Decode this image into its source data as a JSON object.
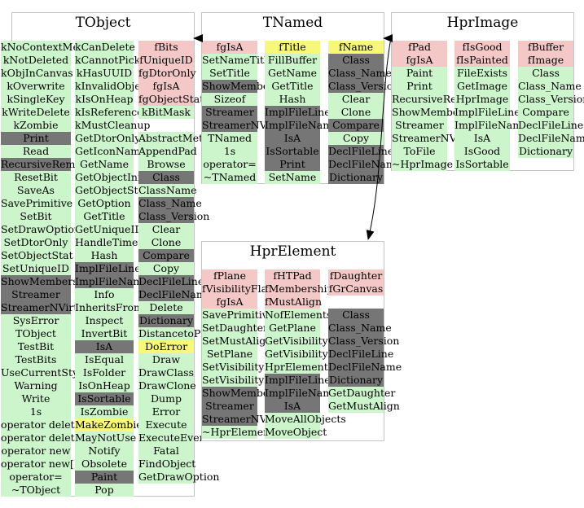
{
  "colors": {
    "pink": "#f5c8c8",
    "green": "#ccf5cc",
    "gray": "#767676",
    "yellow": "#f7f77a"
  },
  "boxes": [
    {
      "id": "tobject",
      "title": "TObject",
      "columns": [
        {
          "items": [
            [
              "kNoContextMenu",
              "green"
            ],
            [
              "kNotDeleted",
              "green"
            ],
            [
              "kObjInCanvas",
              "green"
            ],
            [
              "kOverwrite",
              "green"
            ],
            [
              "kSingleKey",
              "green"
            ],
            [
              "kWriteDelete",
              "green"
            ],
            [
              "kZombie",
              "green"
            ],
            [
              "Print",
              "gray"
            ],
            [
              "Read",
              "green"
            ],
            [
              "RecursiveRemove",
              "gray"
            ],
            [
              "ResetBit",
              "green"
            ],
            [
              "SaveAs",
              "green"
            ],
            [
              "SavePrimitive",
              "green"
            ],
            [
              "SetBit",
              "green"
            ],
            [
              "SetDrawOption",
              "green"
            ],
            [
              "SetDtorOnly",
              "green"
            ],
            [
              "SetObjectStat",
              "green"
            ],
            [
              "SetUniqueID",
              "green"
            ],
            [
              "ShowMembers",
              "gray"
            ],
            [
              "Streamer",
              "gray"
            ],
            [
              "StreamerNVirtual",
              "gray"
            ],
            [
              "SysError",
              "green"
            ],
            [
              "TObject",
              "green"
            ],
            [
              "TestBit",
              "green"
            ],
            [
              "TestBits",
              "green"
            ],
            [
              "UseCurrentStyle",
              "green"
            ],
            [
              "Warning",
              "green"
            ],
            [
              "Write",
              "green"
            ],
            [
              "1s",
              "green"
            ],
            [
              "operator delete",
              "green"
            ],
            [
              "operator delete[]",
              "green"
            ],
            [
              "operator new",
              "green"
            ],
            [
              "operator new[]",
              "green"
            ],
            [
              "operator=",
              "green"
            ],
            [
              "~TObject",
              "green"
            ]
          ]
        },
        {
          "items": [
            [
              "kCanDelete",
              "green"
            ],
            [
              "kCannotPick",
              "green"
            ],
            [
              "kHasUUID",
              "green"
            ],
            [
              "kInvalidObject",
              "green"
            ],
            [
              "kIsOnHeap",
              "green"
            ],
            [
              "kIsReferenced",
              "green"
            ],
            [
              "kMustCleanup",
              "green"
            ],
            [
              "GetDtorOnly",
              "green"
            ],
            [
              "GetIconName",
              "green"
            ],
            [
              "GetName",
              "green"
            ],
            [
              "GetObjectInfo",
              "green"
            ],
            [
              "GetObjectStat",
              "green"
            ],
            [
              "GetOption",
              "green"
            ],
            [
              "GetTitle",
              "green"
            ],
            [
              "GetUniqueID",
              "green"
            ],
            [
              "HandleTimer",
              "green"
            ],
            [
              "Hash",
              "green"
            ],
            [
              "ImplFileLine",
              "gray"
            ],
            [
              "ImplFileName",
              "gray"
            ],
            [
              "Info",
              "green"
            ],
            [
              "InheritsFrom",
              "green"
            ],
            [
              "Inspect",
              "green"
            ],
            [
              "InvertBit",
              "green"
            ],
            [
              "IsA",
              "gray"
            ],
            [
              "IsEqual",
              "green"
            ],
            [
              "IsFolder",
              "green"
            ],
            [
              "IsOnHeap",
              "green"
            ],
            [
              "IsSortable",
              "gray"
            ],
            [
              "IsZombie",
              "green"
            ],
            [
              "MakeZombie",
              "yellow"
            ],
            [
              "MayNotUse",
              "green"
            ],
            [
              "Notify",
              "green"
            ],
            [
              "Obsolete",
              "green"
            ],
            [
              "Paint",
              "gray"
            ],
            [
              "Pop",
              "green"
            ]
          ]
        },
        {
          "items": [
            [
              "fBits",
              "pink"
            ],
            [
              "fUniqueID",
              "pink"
            ],
            [
              "fgDtorOnly",
              "pink"
            ],
            [
              "fgIsA",
              "pink"
            ],
            [
              "fgObjectStat",
              "pink"
            ],
            [
              "kBitMask",
              "green"
            ],
            [
              "_gap_",
              ""
            ],
            [
              "AbstractMethod",
              "green"
            ],
            [
              "AppendPad",
              "green"
            ],
            [
              "Browse",
              "green"
            ],
            [
              "Class",
              "gray"
            ],
            [
              "ClassName",
              "green"
            ],
            [
              "Class_Name",
              "gray"
            ],
            [
              "Class_Version",
              "gray"
            ],
            [
              "Clear",
              "green"
            ],
            [
              "Clone",
              "green"
            ],
            [
              "Compare",
              "gray"
            ],
            [
              "Copy",
              "green"
            ],
            [
              "DeclFileLine",
              "gray"
            ],
            [
              "DeclFileName",
              "gray"
            ],
            [
              "Delete",
              "green"
            ],
            [
              "Dictionary",
              "gray"
            ],
            [
              "DistancetoPrimitive",
              "green"
            ],
            [
              "DoError",
              "yellow"
            ],
            [
              "Draw",
              "green"
            ],
            [
              "DrawClass",
              "green"
            ],
            [
              "DrawClone",
              "green"
            ],
            [
              "Dump",
              "green"
            ],
            [
              "Error",
              "green"
            ],
            [
              "Execute",
              "green"
            ],
            [
              "ExecuteEvent",
              "green"
            ],
            [
              "Fatal",
              "green"
            ],
            [
              "FindObject",
              "green"
            ],
            [
              "GetDrawOption",
              "green"
            ]
          ]
        }
      ]
    },
    {
      "id": "tnamed",
      "title": "TNamed",
      "columns": [
        {
          "items": [
            [
              "fgIsA",
              "pink"
            ],
            [
              "SetNameTitle",
              "green"
            ],
            [
              "SetTitle",
              "green"
            ],
            [
              "ShowMembers",
              "gray"
            ],
            [
              "Sizeof",
              "green"
            ],
            [
              "Streamer",
              "gray"
            ],
            [
              "StreamerNVirtual",
              "gray"
            ],
            [
              "TNamed",
              "green"
            ],
            [
              "1s",
              "green"
            ],
            [
              "operator=",
              "green"
            ],
            [
              "~TNamed",
              "green"
            ]
          ]
        },
        {
          "items": [
            [
              "fTitle",
              "yellow"
            ],
            [
              "FillBuffer",
              "green"
            ],
            [
              "GetName",
              "green"
            ],
            [
              "GetTitle",
              "green"
            ],
            [
              "Hash",
              "green"
            ],
            [
              "ImplFileLine",
              "gray"
            ],
            [
              "ImplFileName",
              "gray"
            ],
            [
              "IsA",
              "gray"
            ],
            [
              "IsSortable",
              "gray"
            ],
            [
              "Print",
              "gray"
            ],
            [
              "SetName",
              "green"
            ]
          ]
        },
        {
          "items": [
            [
              "fName",
              "yellow"
            ],
            [
              "Class",
              "gray"
            ],
            [
              "Class_Name",
              "gray"
            ],
            [
              "Class_Version",
              "gray"
            ],
            [
              "Clear",
              "green"
            ],
            [
              "Clone",
              "green"
            ],
            [
              "Compare",
              "gray"
            ],
            [
              "Copy",
              "green"
            ],
            [
              "DeclFileLine",
              "gray"
            ],
            [
              "DeclFileName",
              "gray"
            ],
            [
              "Dictionary",
              "gray"
            ]
          ]
        }
      ]
    },
    {
      "id": "hprimage",
      "title": "HprImage",
      "columns": [
        {
          "items": [
            [
              "fPad",
              "pink"
            ],
            [
              "fgIsA",
              "pink"
            ],
            [
              "Paint",
              "green"
            ],
            [
              "Print",
              "green"
            ],
            [
              "RecursiveRemove",
              "green"
            ],
            [
              "ShowMembers",
              "green"
            ],
            [
              "Streamer",
              "green"
            ],
            [
              "StreamerNVirtual",
              "green"
            ],
            [
              "ToFile",
              "green"
            ],
            [
              "~HprImage",
              "green"
            ]
          ]
        },
        {
          "items": [
            [
              "fIsGood",
              "pink"
            ],
            [
              "fIsPainted",
              "pink"
            ],
            [
              "FileExists",
              "green"
            ],
            [
              "GetImage",
              "green"
            ],
            [
              "HprImage",
              "green"
            ],
            [
              "ImplFileLine",
              "green"
            ],
            [
              "ImplFileName",
              "green"
            ],
            [
              "IsA",
              "green"
            ],
            [
              "IsGood",
              "green"
            ],
            [
              "IsSortable",
              "green"
            ]
          ]
        },
        {
          "items": [
            [
              "fBuffer",
              "pink"
            ],
            [
              "fImage",
              "pink"
            ],
            [
              "Class",
              "green"
            ],
            [
              "Class_Name",
              "green"
            ],
            [
              "Class_Version",
              "green"
            ],
            [
              "Compare",
              "green"
            ],
            [
              "DeclFileLine",
              "green"
            ],
            [
              "DeclFileName",
              "green"
            ],
            [
              "Dictionary",
              "green"
            ]
          ]
        }
      ]
    },
    {
      "id": "hprelement",
      "title": "HprElement",
      "columns": [
        {
          "items": [
            [
              "fPlane",
              "pink"
            ],
            [
              "fVisibilityFlag",
              "pink"
            ],
            [
              "fgIsA",
              "pink"
            ],
            [
              "SavePrimitive",
              "green"
            ],
            [
              "SetDaughter",
              "green"
            ],
            [
              "SetMustAlign",
              "green"
            ],
            [
              "SetPlane",
              "green"
            ],
            [
              "SetVisibility",
              "green"
            ],
            [
              "SetVisibilityFlag",
              "green"
            ],
            [
              "ShowMembers",
              "gray"
            ],
            [
              "Streamer",
              "gray"
            ],
            [
              "StreamerNVirtual",
              "gray"
            ],
            [
              "~HprElement",
              "green"
            ]
          ]
        },
        {
          "items": [
            [
              "fHTPad",
              "pink"
            ],
            [
              "fMemberships",
              "pink"
            ],
            [
              "fMustAlign",
              "pink"
            ],
            [
              "NofElementsInPlane",
              "green"
            ],
            [
              "GetPlane",
              "green"
            ],
            [
              "GetVisibility",
              "green"
            ],
            [
              "GetVisibilityFlag",
              "green"
            ],
            [
              "HprElement",
              "green"
            ],
            [
              "ImplFileLine",
              "gray"
            ],
            [
              "ImplFileName",
              "gray"
            ],
            [
              "IsA",
              "gray"
            ],
            [
              "MoveAllObjects",
              "green"
            ],
            [
              "MoveObject",
              "green"
            ]
          ]
        },
        {
          "items": [
            [
              "fDaughter",
              "pink"
            ],
            [
              "fGrCanvas",
              "pink"
            ],
            [
              "_gap_",
              ""
            ],
            [
              "Class",
              "gray"
            ],
            [
              "Class_Name",
              "gray"
            ],
            [
              "Class_Version",
              "gray"
            ],
            [
              "DeclFileLine",
              "gray"
            ],
            [
              "DeclFileName",
              "gray"
            ],
            [
              "Dictionary",
              "gray"
            ],
            [
              "GetDaughter",
              "green"
            ],
            [
              "GetMustAlign",
              "green"
            ]
          ]
        }
      ]
    }
  ]
}
